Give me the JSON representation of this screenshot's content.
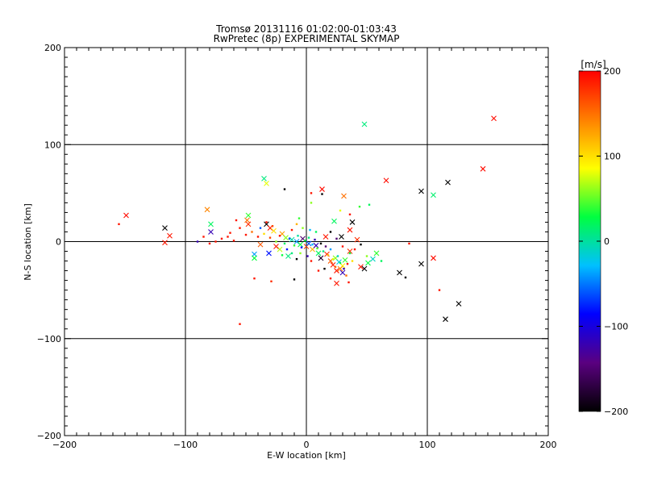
{
  "chart_data": {
    "type": "scatter",
    "title_line1": "Tromsø 20131116 01:02:00-01:03:43",
    "title_line2": "RwPretec (8p) EXPERIMENTAL SKYMAP",
    "xlabel": "E-W location [km]",
    "ylabel": "N-S location [km]",
    "xlim": [
      -200,
      200
    ],
    "ylim": [
      -200,
      200
    ],
    "xticks": [
      -200,
      -100,
      0,
      100,
      200
    ],
    "yticks": [
      -200,
      -100,
      0,
      100,
      200
    ],
    "grid": true,
    "colorbar": {
      "label": "[m/s]",
      "range": [
        -200,
        200
      ],
      "ticks": [
        200,
        100,
        0,
        -100,
        -200
      ],
      "colormap": [
        "#000000",
        "#5a0080",
        "#0000ff",
        "#00c0ff",
        "#00ff40",
        "#ffff00",
        "#ff8000",
        "#ff0000"
      ]
    },
    "points": [
      {
        "x": 155,
        "y": 127,
        "v": 195,
        "m": "x"
      },
      {
        "x": 146,
        "y": 75,
        "v": 195,
        "m": "x"
      },
      {
        "x": 66,
        "y": 63,
        "v": 195,
        "m": "x"
      },
      {
        "x": 48,
        "y": 121,
        "v": 10,
        "m": "x"
      },
      {
        "x": 117,
        "y": 61,
        "v": -200,
        "m": "x"
      },
      {
        "x": 95,
        "y": 52,
        "v": -200,
        "m": "x"
      },
      {
        "x": 105,
        "y": 48,
        "v": 15,
        "m": "x"
      },
      {
        "x": 105,
        "y": -17,
        "v": 195,
        "m": "x"
      },
      {
        "x": 95,
        "y": -23,
        "v": -200,
        "m": "x"
      },
      {
        "x": 77,
        "y": -32,
        "v": -200,
        "m": "x"
      },
      {
        "x": 126,
        "y": -64,
        "v": -200,
        "m": "x"
      },
      {
        "x": 115,
        "y": -80,
        "v": -200,
        "m": "x"
      },
      {
        "x": -149,
        "y": 27,
        "v": 195,
        "m": "x"
      },
      {
        "x": -117,
        "y": 14,
        "v": -200,
        "m": "x"
      },
      {
        "x": -113,
        "y": 6,
        "v": 190,
        "m": "x"
      },
      {
        "x": -117,
        "y": -1,
        "v": 190,
        "m": "x"
      },
      {
        "x": -82,
        "y": 33,
        "v": 140,
        "m": "x"
      },
      {
        "x": -79,
        "y": 18,
        "v": 20,
        "m": "x"
      },
      {
        "x": -79,
        "y": 10,
        "v": -120,
        "m": "x"
      },
      {
        "x": -35,
        "y": 65,
        "v": 10,
        "m": "x"
      },
      {
        "x": -33,
        "y": 60,
        "v": 80,
        "m": "x"
      },
      {
        "x": 13,
        "y": 54,
        "v": 195,
        "m": "x"
      },
      {
        "x": 31,
        "y": 47,
        "v": 150,
        "m": "x"
      },
      {
        "x": 38,
        "y": 20,
        "v": -200,
        "m": "x"
      },
      {
        "x": 23,
        "y": 21,
        "v": 20,
        "m": "x"
      },
      {
        "x": 36,
        "y": 12,
        "v": 190,
        "m": "x"
      },
      {
        "x": 29,
        "y": 5,
        "v": -200,
        "m": "x"
      },
      {
        "x": 16,
        "y": 5,
        "v": 190,
        "m": "x"
      },
      {
        "x": -48,
        "y": 27,
        "v": 40,
        "m": "x"
      },
      {
        "x": -49,
        "y": 22,
        "v": 150,
        "m": "x"
      },
      {
        "x": -48,
        "y": 18,
        "v": 180,
        "m": "x"
      },
      {
        "x": -33,
        "y": 18,
        "v": -200,
        "m": "x"
      },
      {
        "x": -30,
        "y": 14,
        "v": 190,
        "m": "x"
      },
      {
        "x": -27,
        "y": 11,
        "v": 100,
        "m": "x"
      },
      {
        "x": -20,
        "y": 8,
        "v": 130,
        "m": "x"
      },
      {
        "x": -17,
        "y": 4,
        "v": 60,
        "m": "x"
      },
      {
        "x": -12,
        "y": 2,
        "v": 0,
        "m": "x"
      },
      {
        "x": -8,
        "y": 0,
        "v": -40,
        "m": "x"
      },
      {
        "x": -5,
        "y": -3,
        "v": 30,
        "m": "x"
      },
      {
        "x": -3,
        "y": 3,
        "v": -150,
        "m": "x"
      },
      {
        "x": 0,
        "y": -5,
        "v": 170,
        "m": "x"
      },
      {
        "x": 2,
        "y": -2,
        "v": -60,
        "m": "x"
      },
      {
        "x": 5,
        "y": -8,
        "v": 120,
        "m": "x"
      },
      {
        "x": 8,
        "y": -4,
        "v": -120,
        "m": "x"
      },
      {
        "x": 10,
        "y": -12,
        "v": 20,
        "m": "x"
      },
      {
        "x": -22,
        "y": -8,
        "v": 70,
        "m": "x"
      },
      {
        "x": -15,
        "y": -15,
        "v": 10,
        "m": "x"
      },
      {
        "x": -25,
        "y": -5,
        "v": 190,
        "m": "x"
      },
      {
        "x": -38,
        "y": -3,
        "v": 160,
        "m": "x"
      },
      {
        "x": -43,
        "y": -13,
        "v": -40,
        "m": "x"
      },
      {
        "x": -43,
        "y": -17,
        "v": 30,
        "m": "x"
      },
      {
        "x": -31,
        "y": -12,
        "v": -80,
        "m": "x"
      },
      {
        "x": 12,
        "y": -17,
        "v": -180,
        "m": "x"
      },
      {
        "x": 17,
        "y": -13,
        "v": 180,
        "m": "x"
      },
      {
        "x": 20,
        "y": -20,
        "v": 160,
        "m": "x"
      },
      {
        "x": 22,
        "y": -24,
        "v": 190,
        "m": "x"
      },
      {
        "x": 24,
        "y": -17,
        "v": 60,
        "m": "x"
      },
      {
        "x": 27,
        "y": -21,
        "v": -20,
        "m": "x"
      },
      {
        "x": 30,
        "y": -25,
        "v": 90,
        "m": "x"
      },
      {
        "x": 28,
        "y": -28,
        "v": 140,
        "m": "x"
      },
      {
        "x": 25,
        "y": -30,
        "v": 190,
        "m": "x"
      },
      {
        "x": 32,
        "y": -19,
        "v": 40,
        "m": "x"
      },
      {
        "x": 30,
        "y": -32,
        "v": -120,
        "m": "x"
      },
      {
        "x": 25,
        "y": -43,
        "v": 190,
        "m": "x"
      },
      {
        "x": 36,
        "y": -10,
        "v": 180,
        "m": "x"
      },
      {
        "x": 45,
        "y": -26,
        "v": 190,
        "m": "x"
      },
      {
        "x": 51,
        "y": -22,
        "v": 30,
        "m": "x"
      },
      {
        "x": 55,
        "y": -18,
        "v": -10,
        "m": "x"
      },
      {
        "x": 58,
        "y": -12,
        "v": 40,
        "m": "x"
      },
      {
        "x": 48,
        "y": -28,
        "v": -200,
        "m": "x"
      },
      {
        "x": 42,
        "y": 2,
        "v": 180,
        "m": "x"
      },
      {
        "x": -18,
        "y": 54,
        "v": -200,
        "m": "d"
      },
      {
        "x": 4,
        "y": 50,
        "v": 190,
        "m": "d"
      },
      {
        "x": 13,
        "y": 49,
        "v": -200,
        "m": "d"
      },
      {
        "x": 52,
        "y": 38,
        "v": 20,
        "m": "d"
      },
      {
        "x": 28,
        "y": 32,
        "v": 80,
        "m": "d"
      },
      {
        "x": 4,
        "y": 40,
        "v": 60,
        "m": "d"
      },
      {
        "x": -155,
        "y": 18,
        "v": 190,
        "m": "d"
      },
      {
        "x": -55,
        "y": -85,
        "v": 190,
        "m": "d"
      },
      {
        "x": -43,
        "y": -38,
        "v": 190,
        "m": "d"
      },
      {
        "x": -29,
        "y": -41,
        "v": 180,
        "m": "d"
      },
      {
        "x": -10,
        "y": -39,
        "v": -200,
        "m": "d"
      },
      {
        "x": 82,
        "y": -37,
        "v": -200,
        "m": "d"
      },
      {
        "x": 110,
        "y": -50,
        "v": 190,
        "m": "d"
      },
      {
        "x": 85,
        "y": -2,
        "v": 190,
        "m": "d"
      },
      {
        "x": -70,
        "y": 3,
        "v": 190,
        "m": "d"
      },
      {
        "x": -65,
        "y": 5,
        "v": 190,
        "m": "d"
      },
      {
        "x": -60,
        "y": 1,
        "v": 190,
        "m": "d"
      },
      {
        "x": -63,
        "y": 9,
        "v": 190,
        "m": "d"
      },
      {
        "x": -55,
        "y": 14,
        "v": 190,
        "m": "d"
      },
      {
        "x": -58,
        "y": 22,
        "v": 190,
        "m": "d"
      },
      {
        "x": -50,
        "y": 7,
        "v": 190,
        "m": "d"
      },
      {
        "x": -45,
        "y": 10,
        "v": 150,
        "m": "d"
      },
      {
        "x": -40,
        "y": 5,
        "v": 190,
        "m": "d"
      },
      {
        "x": -35,
        "y": 8,
        "v": 100,
        "m": "d"
      },
      {
        "x": -30,
        "y": 4,
        "v": 170,
        "m": "d"
      },
      {
        "x": -25,
        "y": 0,
        "v": 60,
        "m": "d"
      },
      {
        "x": -22,
        "y": 6,
        "v": 190,
        "m": "d"
      },
      {
        "x": -18,
        "y": -2,
        "v": 20,
        "m": "d"
      },
      {
        "x": -14,
        "y": 3,
        "v": -60,
        "m": "d"
      },
      {
        "x": -10,
        "y": -4,
        "v": 40,
        "m": "d"
      },
      {
        "x": -7,
        "y": 6,
        "v": 0,
        "m": "d"
      },
      {
        "x": -4,
        "y": -6,
        "v": -90,
        "m": "d"
      },
      {
        "x": -1,
        "y": 1,
        "v": 30,
        "m": "d"
      },
      {
        "x": 2,
        "y": 4,
        "v": 10,
        "m": "d"
      },
      {
        "x": 5,
        "y": -3,
        "v": -30,
        "m": "d"
      },
      {
        "x": 7,
        "y": 2,
        "v": -120,
        "m": "d"
      },
      {
        "x": 9,
        "y": -7,
        "v": 50,
        "m": "d"
      },
      {
        "x": 12,
        "y": -2,
        "v": -200,
        "m": "d"
      },
      {
        "x": 14,
        "y": -10,
        "v": 10,
        "m": "d"
      },
      {
        "x": 16,
        "y": -5,
        "v": -150,
        "m": "d"
      },
      {
        "x": 18,
        "y": -14,
        "v": 120,
        "m": "d"
      },
      {
        "x": 20,
        "y": -8,
        "v": -40,
        "m": "d"
      },
      {
        "x": 22,
        "y": -18,
        "v": 80,
        "m": "d"
      },
      {
        "x": 24,
        "y": -26,
        "v": 160,
        "m": "d"
      },
      {
        "x": 26,
        "y": -15,
        "v": -10,
        "m": "d"
      },
      {
        "x": 28,
        "y": -22,
        "v": 20,
        "m": "d"
      },
      {
        "x": 31,
        "y": -28,
        "v": -120,
        "m": "d"
      },
      {
        "x": 34,
        "y": -23,
        "v": 190,
        "m": "d"
      },
      {
        "x": 33,
        "y": -35,
        "v": 150,
        "m": "d"
      },
      {
        "x": 38,
        "y": -20,
        "v": 100,
        "m": "d"
      },
      {
        "x": -12,
        "y": -12,
        "v": 10,
        "m": "d"
      },
      {
        "x": -16,
        "y": -8,
        "v": -80,
        "m": "d"
      },
      {
        "x": -20,
        "y": -14,
        "v": 30,
        "m": "d"
      },
      {
        "x": -8,
        "y": -18,
        "v": -200,
        "m": "d"
      },
      {
        "x": -5,
        "y": -12,
        "v": 60,
        "m": "d"
      },
      {
        "x": 1,
        "y": -15,
        "v": -120,
        "m": "d"
      },
      {
        "x": 4,
        "y": -20,
        "v": 190,
        "m": "d"
      },
      {
        "x": 8,
        "y": 10,
        "v": 20,
        "m": "d"
      },
      {
        "x": 3,
        "y": 12,
        "v": -30,
        "m": "d"
      },
      {
        "x": -3,
        "y": 14,
        "v": 60,
        "m": "d"
      },
      {
        "x": -8,
        "y": 18,
        "v": 120,
        "m": "d"
      },
      {
        "x": -12,
        "y": 12,
        "v": 190,
        "m": "d"
      },
      {
        "x": -6,
        "y": 24,
        "v": 40,
        "m": "d"
      },
      {
        "x": -28,
        "y": 16,
        "v": 170,
        "m": "d"
      },
      {
        "x": -33,
        "y": 20,
        "v": 190,
        "m": "d"
      },
      {
        "x": -38,
        "y": 14,
        "v": -60,
        "m": "d"
      },
      {
        "x": 20,
        "y": 10,
        "v": -200,
        "m": "d"
      },
      {
        "x": 25,
        "y": 3,
        "v": -150,
        "m": "d"
      },
      {
        "x": 30,
        "y": -5,
        "v": 190,
        "m": "d"
      },
      {
        "x": 36,
        "y": -12,
        "v": 30,
        "m": "d"
      },
      {
        "x": 40,
        "y": -8,
        "v": 190,
        "m": "d"
      },
      {
        "x": 45,
        "y": -3,
        "v": -200,
        "m": "d"
      },
      {
        "x": 50,
        "y": -15,
        "v": 60,
        "m": "d"
      },
      {
        "x": 62,
        "y": -20,
        "v": 20,
        "m": "d"
      },
      {
        "x": -85,
        "y": 5,
        "v": 190,
        "m": "d"
      },
      {
        "x": -90,
        "y": 0,
        "v": -120,
        "m": "d"
      },
      {
        "x": -80,
        "y": -2,
        "v": 190,
        "m": "d"
      },
      {
        "x": -75,
        "y": 0,
        "v": 190,
        "m": "d"
      },
      {
        "x": 35,
        "y": -42,
        "v": 190,
        "m": "d"
      },
      {
        "x": 20,
        "y": -38,
        "v": 190,
        "m": "d"
      },
      {
        "x": 15,
        "y": -28,
        "v": -200,
        "m": "d"
      },
      {
        "x": 10,
        "y": -30,
        "v": 190,
        "m": "d"
      },
      {
        "x": 44,
        "y": 36,
        "v": 40,
        "m": "d"
      },
      {
        "x": 36,
        "y": 28,
        "v": 190,
        "m": "d"
      }
    ]
  }
}
